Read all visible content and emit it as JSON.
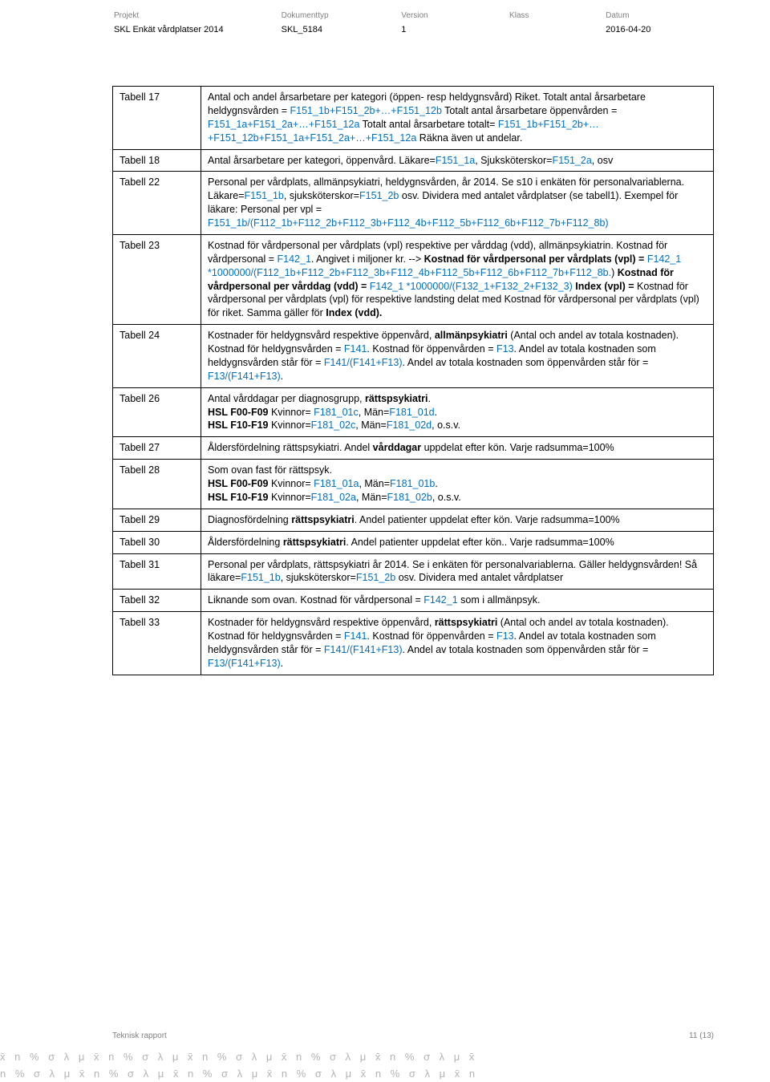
{
  "header": {
    "labels": {
      "projekt": "Projekt",
      "dokumenttyp": "Dokumenttyp",
      "version": "Version",
      "klass": "Klass",
      "datum": "Datum"
    },
    "values": {
      "projekt": "SKL Enkät vårdplatser 2014",
      "dokumenttyp": "SKL_5184",
      "version": "1",
      "klass": "",
      "datum": "2016-04-20"
    }
  },
  "rows": [
    {
      "label": "Tabell 17",
      "segments": [
        {
          "t": "Antal och andel årsarbetare per kategori (öppen- resp heldygnsvård) Riket. Totalt antal årsarbetare heldygnsvården = "
        },
        {
          "t": "F151_1b+F151_2b+…+F151_12b",
          "c": "blue"
        },
        {
          "t": " Totalt antal årsarbetare öppenvården = "
        },
        {
          "t": "F151_1a+F151_2a+…+F151_12a",
          "c": "blue"
        },
        {
          "t": " Totalt antal årsarbetare totalt= "
        },
        {
          "t": "F151_1b+F151_2b+…+F151_12b+F151_1a+F151_2a+…+F151_12a",
          "c": "blue"
        },
        {
          "t": " Räkna även ut andelar."
        }
      ]
    },
    {
      "label": "Tabell 18",
      "segments": [
        {
          "t": "Antal årsarbetare per kategori, öppenvård. Läkare="
        },
        {
          "t": "F151_1a",
          "c": "blue"
        },
        {
          "t": ", Sjuksköterskor="
        },
        {
          "t": "F151_2a",
          "c": "blue"
        },
        {
          "t": ", osv"
        }
      ]
    },
    {
      "label": "Tabell 22",
      "segments": [
        {
          "t": "Personal per vårdplats, allmänpsykiatri, heldygnsvården, år 2014. Se s10 i enkäten för personalvariablerna. Läkare="
        },
        {
          "t": "F151_1b",
          "c": "blue"
        },
        {
          "t": ", sjuksköterskor="
        },
        {
          "t": "F151_2b",
          "c": "blue"
        },
        {
          "t": " osv. Dividera med antalet vårdplatser (se tabell1). Exempel för läkare: Personal per vpl = "
        },
        {
          "t": "F151_1b/(F112_1b+F112_2b+F112_3b+F112_4b+F112_5b+F112_6b+F112_7b+F112_8b)",
          "c": "blue"
        }
      ]
    },
    {
      "label": "Tabell 23",
      "segments": [
        {
          "t": "Kostnad för vårdpersonal per vårdplats (vpl) respektive per vårddag (vdd), allmänpsykiatrin. Kostnad för vårdpersonal = "
        },
        {
          "t": "F142_1",
          "c": "blue"
        },
        {
          "t": ". Angivet i miljoner kr. --> "
        },
        {
          "t": "Kostnad för vårdpersonal per vårdplats (vpl) =",
          "c": "bold"
        },
        {
          "t": " "
        },
        {
          "t": "F142_1 *1000000/(F112_1b+F112_2b+F112_3b+F112_4b+F112_5b+F112_6b+F112_7b+F112_8b.",
          "c": "blue"
        },
        {
          "t": ") "
        },
        {
          "t": " Kostnad för vårdpersonal per vårddag (vdd) = ",
          "c": "bold"
        },
        {
          "t": "F142_1 *1000000/(F132_1+F132_2+F132_3)",
          "c": "blue"
        },
        {
          "t": "   "
        },
        {
          "t": "Index (vpl) =",
          "c": "bold"
        },
        {
          "t": " Kostnad för vårdpersonal per vårdplats (vpl) för respektive landsting delat med Kostnad för vårdpersonal per vårdplats (vpl) för riket. Samma gäller för "
        },
        {
          "t": "Index (vdd).",
          "c": "bold"
        }
      ]
    },
    {
      "label": "Tabell 24",
      "segments": [
        {
          "t": "Kostnader för heldygnsvård respektive öppenvård, "
        },
        {
          "t": "allmänpsykiatri",
          "c": "bold"
        },
        {
          "t": " (Antal och andel av totala kostnaden). Kostnad för heldygnsvården = "
        },
        {
          "t": "F141",
          "c": "blue"
        },
        {
          "t": ". Kostnad för öppenvården = "
        },
        {
          "t": "F13",
          "c": "blue"
        },
        {
          "t": ". Andel av totala kostnaden som heldygnsvården står för = "
        },
        {
          "t": "F141/(F141+F13)",
          "c": "blue"
        },
        {
          "t": ". Andel av totala kostnaden som öppenvården står för = "
        },
        {
          "t": "F13/(F141+F13)",
          "c": "blue"
        },
        {
          "t": "."
        }
      ]
    },
    {
      "label": "Tabell 26",
      "segments": [
        {
          "t": "Antal vårddagar per diagnosgrupp, "
        },
        {
          "t": "rättspsykiatri",
          "c": "bold"
        },
        {
          "t": "."
        },
        {
          "br": true
        },
        {
          "t": "HSL F00-F09",
          "c": "bold"
        },
        {
          "t": " Kvinnor= "
        },
        {
          "t": "F181_01c",
          "c": "blue"
        },
        {
          "t": ", Män="
        },
        {
          "t": "F181_01d",
          "c": "blue"
        },
        {
          "t": "."
        },
        {
          "br": true
        },
        {
          "t": "HSL F10-F19",
          "c": "bold"
        },
        {
          "t": " Kvinnor="
        },
        {
          "t": "F181_02c",
          "c": "blue"
        },
        {
          "t": ", Män="
        },
        {
          "t": "F181_02d",
          "c": "blue"
        },
        {
          "t": ", o.s.v."
        }
      ]
    },
    {
      "label": "Tabell 27",
      "segments": [
        {
          "t": "Åldersfördelning rättspsykiatri. Andel "
        },
        {
          "t": "vårddagar",
          "c": "bold"
        },
        {
          "t": " uppdelat efter kön. Varje radsumma=100%"
        }
      ]
    },
    {
      "label": "Tabell 28",
      "segments": [
        {
          "t": "Som ovan fast för rättspsyk."
        },
        {
          "br": true
        },
        {
          "t": "HSL F00-F09",
          "c": "bold"
        },
        {
          "t": " Kvinnor= "
        },
        {
          "t": "F181_01a",
          "c": "blue"
        },
        {
          "t": ", Män="
        },
        {
          "t": "F181_01b",
          "c": "blue"
        },
        {
          "t": "."
        },
        {
          "br": true
        },
        {
          "t": "HSL F10-F19",
          "c": "bold"
        },
        {
          "t": " Kvinnor="
        },
        {
          "t": "F181_02a",
          "c": "blue"
        },
        {
          "t": ", Män="
        },
        {
          "t": "F181_02b",
          "c": "blue"
        },
        {
          "t": ", o.s.v."
        }
      ]
    },
    {
      "label": "Tabell 29",
      "segments": [
        {
          "t": "Diagnosfördelning "
        },
        {
          "t": "rättspsykiatri",
          "c": "bold"
        },
        {
          "t": ". Andel patienter uppdelat efter kön. Varje radsumma=100%"
        }
      ]
    },
    {
      "label": "Tabell 30",
      "segments": [
        {
          "t": "Åldersfördelning "
        },
        {
          "t": "rättspsykiatri",
          "c": "bold"
        },
        {
          "t": ". Andel patienter uppdelat efter kön.. Varje radsumma=100%"
        }
      ]
    },
    {
      "label": "Tabell 31",
      "segments": [
        {
          "t": "Personal per vårdplats, rättspsykiatri år 2014. Se i enkäten för personalvariablerna. Gäller heldygnsvården! Så läkare="
        },
        {
          "t": "F151_1b",
          "c": "blue"
        },
        {
          "t": ", sjuksköterskor="
        },
        {
          "t": "F151_2b",
          "c": "blue"
        },
        {
          "t": " osv. Dividera med antalet vårdplatser"
        }
      ]
    },
    {
      "label": "Tabell 32",
      "segments": [
        {
          "t": "Liknande som ovan. Kostnad för vårdpersonal = "
        },
        {
          "t": "F142_1",
          "c": "blue"
        },
        {
          "t": " som i allmänpsyk."
        }
      ]
    },
    {
      "label": "Tabell 33",
      "segments": [
        {
          "t": "Kostnader för heldygnsvård respektive öppenvård, "
        },
        {
          "t": "rättspsykiatri",
          "c": "bold"
        },
        {
          "t": " (Antal och andel av totala kostnaden). Kostnad för heldygnsvården = "
        },
        {
          "t": "F141",
          "c": "blue"
        },
        {
          "t": ". Kostnad för öppenvården = "
        },
        {
          "t": "F13",
          "c": "blue"
        },
        {
          "t": ". Andel av totala kostnaden som heldygnsvården står för = "
        },
        {
          "t": "F141/(F141+F13)",
          "c": "blue"
        },
        {
          "t": ". Andel av totala kostnaden som öppenvården står för = "
        },
        {
          "t": "F13/(F141+F13)",
          "c": "blue"
        },
        {
          "t": "."
        }
      ]
    }
  ],
  "footer": {
    "left": "Teknisk rapport",
    "right": "11 (13)"
  },
  "decoration": {
    "row1": "x̄   n   %   σ   λ   μ   x̄   n   %   σ   λ   μ   x̄   n   %   σ   λ   μ   x̄   n   %   σ   λ   μ   x̄   n   %   σ   λ   μ   x̄",
    "row2": "n   %   σ   λ   μ   x̄   n   %   σ   λ   μ   x̄   n   %   σ   λ   μ   x̄   n   %   σ   λ   μ   x̄   n   %   σ   λ   μ   x̄   n"
  },
  "colors": {
    "link_blue": "#0070c0",
    "header_gray": "#808080",
    "deco_gray": "#b3b3b3"
  }
}
